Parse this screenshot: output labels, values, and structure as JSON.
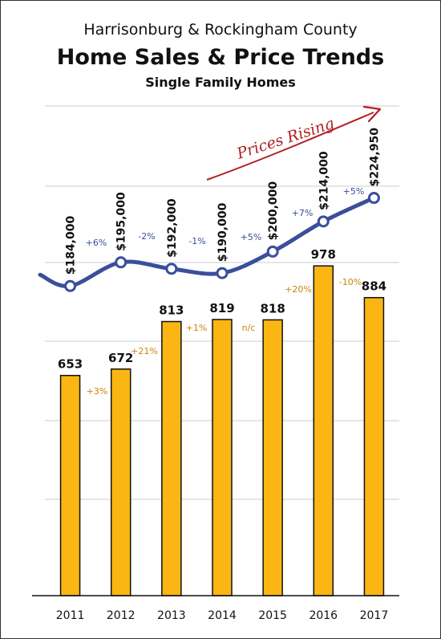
{
  "header": {
    "supertitle": "Harrisonburg & Rockingham County",
    "title": "Home Sales & Price Trends",
    "subtitle": "Single Family Homes"
  },
  "colors": {
    "bar_fill": "#fbb614",
    "bar_stroke": "#111111",
    "line": "#3a4f9a",
    "sales_pct": "#c8860a",
    "price_pct": "#3a4f9a",
    "annotation": "#b02024",
    "grid": "#cccccc"
  },
  "chart_data": {
    "type": "bar",
    "categories": [
      "2011",
      "2012",
      "2013",
      "2014",
      "2015",
      "2016",
      "2017"
    ],
    "grid": true,
    "series": [
      {
        "type": "bar",
        "values": [
          653,
          672,
          813,
          819,
          818,
          978,
          884
        ],
        "labels": [
          "653",
          "672",
          "813",
          "819",
          "818",
          "978",
          "884"
        ],
        "change_labels": [
          "+3%",
          "+21%",
          "+1%",
          "n/c",
          "+20%",
          "-10%"
        ]
      },
      {
        "type": "line",
        "values": [
          184000,
          195000,
          192000,
          190000,
          200000,
          214000,
          224950
        ],
        "labels": [
          "$184,000",
          "$195,000",
          "$192,000",
          "$190,000",
          "$200,000",
          "$214,000",
          "$224,950"
        ],
        "change_labels": [
          "+6%",
          "-2%",
          "-1%",
          "+5%",
          "+7%",
          "+5%"
        ]
      }
    ],
    "annotations": [
      "Prices Rising"
    ]
  }
}
